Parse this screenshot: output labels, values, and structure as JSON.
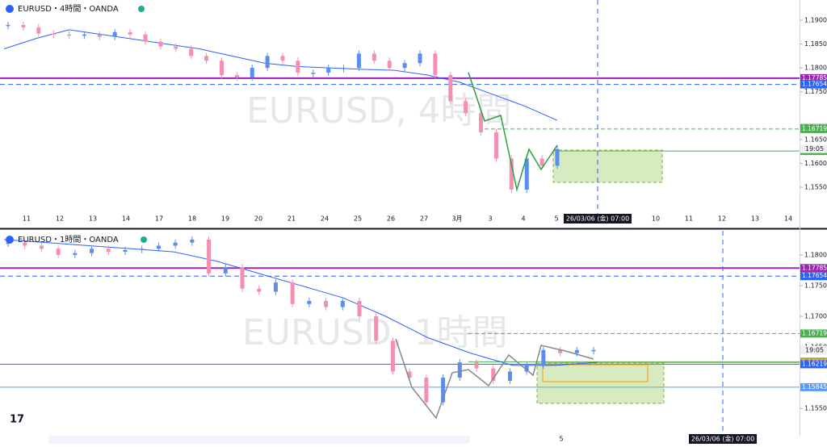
{
  "panels": [
    {
      "header": "EURUSD・4時間・OANDA",
      "watermark": "EURUSD, 4時間",
      "ylim": [
        1.14993,
        1.19423
      ],
      "yticks": [
        {
          "value": 1.19,
          "label": "1.19000"
        },
        {
          "value": 1.185,
          "label": "1.18500"
        },
        {
          "value": 1.18,
          "label": "1.18000"
        },
        {
          "value": 1.175,
          "label": "1.17500"
        },
        {
          "value": 1.165,
          "label": "1.16500"
        },
        {
          "value": 1.16,
          "label": "1.16000"
        },
        {
          "value": 1.155,
          "label": "1.15500"
        }
      ],
      "closes": [
        1.189,
        1.1885,
        1.1872,
        1.187,
        1.1868,
        1.187,
        1.1865,
        1.1875,
        1.187,
        1.1855,
        1.1845,
        1.184,
        1.1825,
        1.1815,
        1.1785,
        1.178,
        1.18,
        1.1825,
        1.1815,
        1.179,
        1.179,
        1.18,
        1.18,
        1.183,
        1.1815,
        1.18,
        1.181,
        1.183,
        1.1785,
        1.173,
        1.1705,
        1.1665,
        1.161,
        1.1545,
        1.161,
        1.1595,
        1.163
      ],
      "ma": [
        1.184,
        1.1862,
        1.188,
        1.187,
        1.186,
        1.185,
        1.184,
        1.1825,
        1.181,
        1.1803,
        1.18,
        1.1797,
        1.1795,
        1.1785,
        1.177,
        1.1745,
        1.172,
        1.169
      ],
      "levels": [
        1.17785,
        1.17654,
        1.16741,
        1.16719,
        1.16259
      ],
      "last_time": "19:05",
      "dates": [
        "11",
        "12",
        "13",
        "14",
        "17",
        "18",
        "19",
        "20",
        "21",
        "24",
        "25",
        "26",
        "27",
        "3月",
        "3",
        "4",
        "5",
        null,
        null,
        "10",
        "11",
        "12",
        "13",
        "14"
      ],
      "cursor": "26/03/06 (金)  07:00"
    },
    {
      "header": "EURUSD・1時間・OANDA",
      "watermark": "EURUSD, 1時間",
      "ylim": [
        1.15055,
        1.18393
      ],
      "yticks": [
        {
          "value": 1.18,
          "label": "1.18000"
        },
        {
          "value": 1.175,
          "label": "1.17500"
        },
        {
          "value": 1.17,
          "label": "1.17000"
        },
        {
          "value": 1.165,
          "label": "1.16500"
        },
        {
          "value": 1.155,
          "label": "1.15500"
        }
      ],
      "closes": [
        1.182,
        1.1815,
        1.181,
        1.18,
        1.1803,
        1.181,
        1.1805,
        1.1808,
        1.181,
        1.1815,
        1.182,
        1.1825,
        1.177,
        1.178,
        1.1745,
        1.174,
        1.1755,
        1.172,
        1.1725,
        1.1715,
        1.1725,
        1.17,
        1.166,
        1.161,
        1.16,
        1.156,
        1.16,
        1.1625,
        1.1615,
        1.1595,
        1.161,
        1.162,
        1.1645,
        1.164,
        1.1645,
        1.1645
      ],
      "ma": [
        1.1825,
        1.182,
        1.1815,
        1.181,
        1.1805,
        1.179,
        1.177,
        1.175,
        1.173,
        1.17,
        1.1665,
        1.164,
        1.162,
        1.162,
        1.1625
      ],
      "levels": [
        1.17785,
        1.17654,
        1.16719,
        1.16259,
        1.16246,
        1.16219,
        1.15845
      ],
      "last_time": "19:05",
      "dates": [
        "5"
      ],
      "cursor": "26/03/06 (金)  07:00"
    }
  ]
}
